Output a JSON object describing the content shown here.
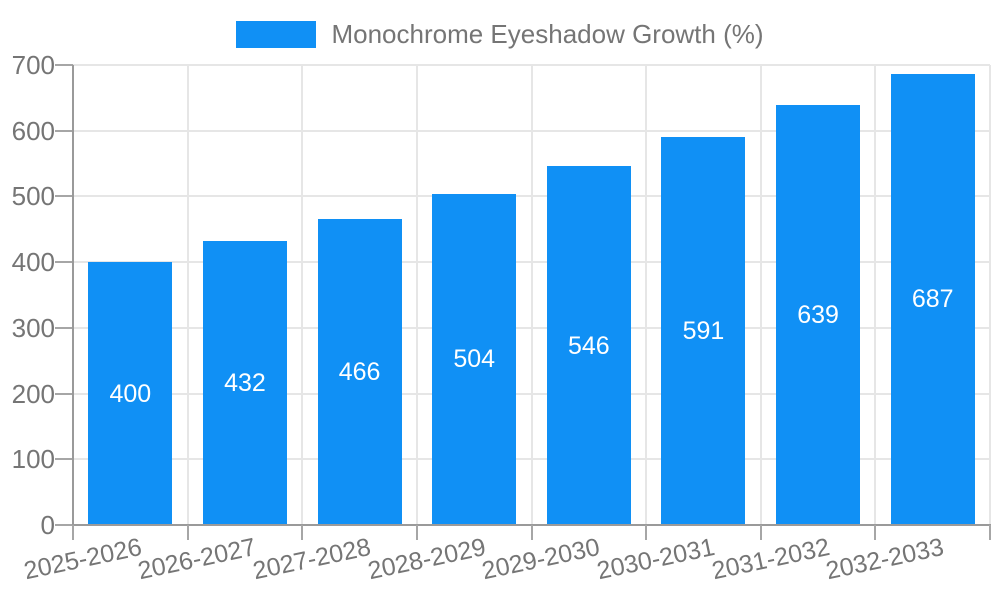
{
  "chart_data": {
    "type": "bar",
    "title": "Monochrome Eyeshadow Growth (%)",
    "categories": [
      "2025-2026",
      "2026-2027",
      "2027-2028",
      "2028-2029",
      "2029-2030",
      "2030-2031",
      "2031-2032",
      "2032-2033"
    ],
    "values": [
      400,
      432,
      466,
      504,
      546,
      591,
      639,
      687
    ],
    "yticks": [
      0,
      100,
      200,
      300,
      400,
      500,
      600,
      700
    ],
    "ylim": [
      0,
      700
    ],
    "xlabel": "",
    "ylabel": "",
    "grid": true,
    "legend_position": "top",
    "value_labels": "center",
    "bar_color": "#1090F5",
    "value_label_color": "#ffffff",
    "axis_text_color": "#757575",
    "grid_color": "#e6e6e6",
    "axis_line_color": "#9a9a9a",
    "background_color": "#ffffff"
  }
}
